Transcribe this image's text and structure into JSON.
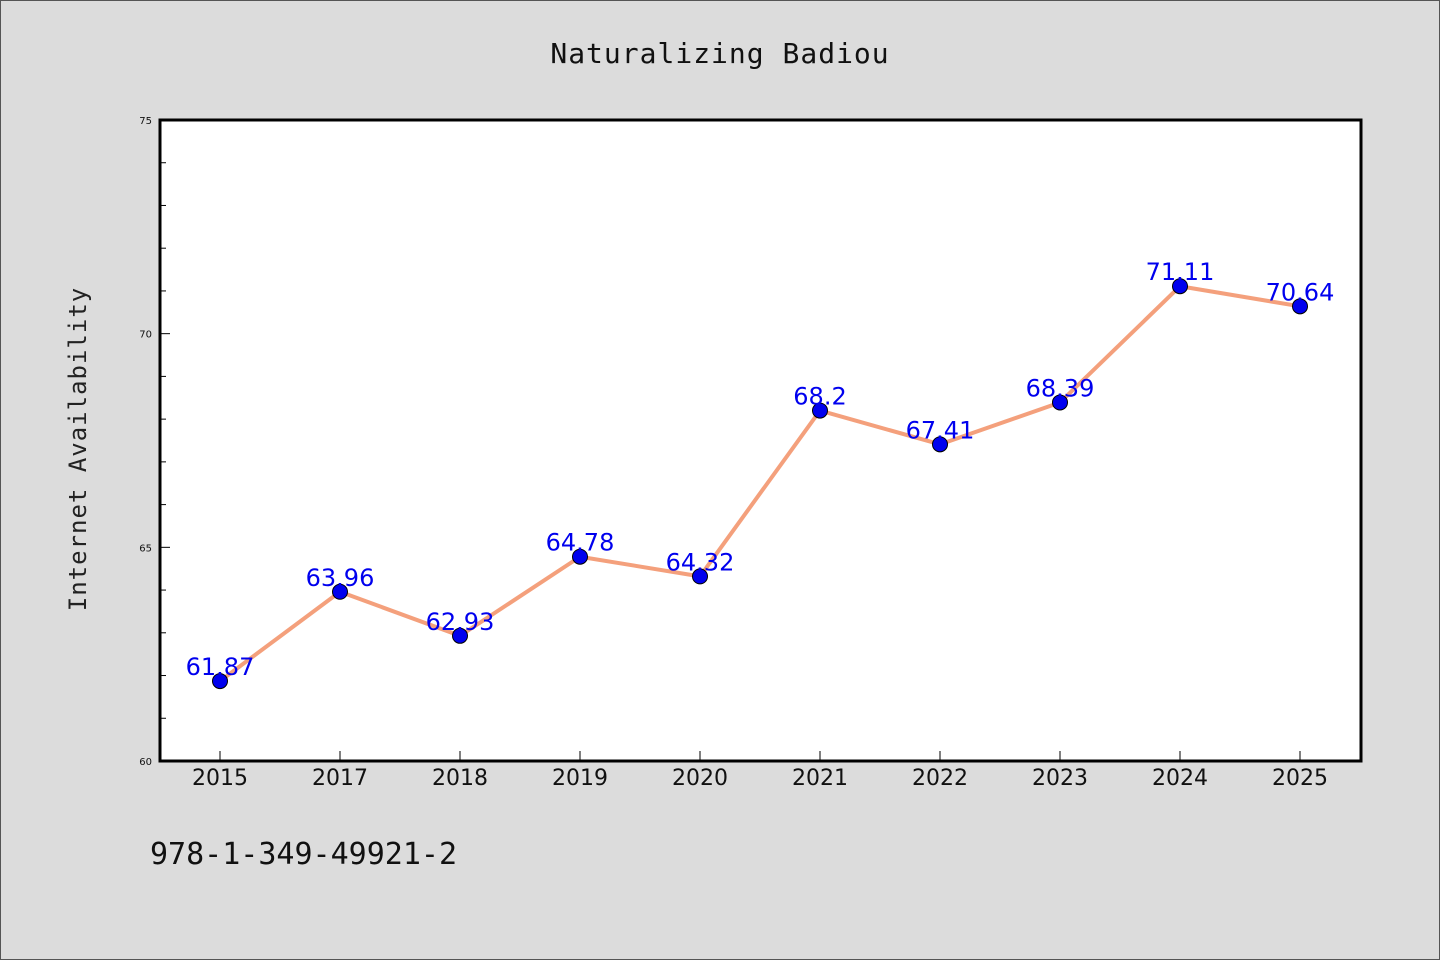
{
  "chart_data": {
    "type": "line",
    "title": "Naturalizing Badiou",
    "xlabel": "",
    "ylabel": "Internet Availability",
    "categories": [
      "2015",
      "2017",
      "2018",
      "2019",
      "2020",
      "2021",
      "2022",
      "2023",
      "2024",
      "2025"
    ],
    "series": [
      {
        "values": [
          61.87,
          63.96,
          62.93,
          64.78,
          64.32,
          68.2,
          67.41,
          68.39,
          71.11,
          70.64
        ]
      }
    ],
    "data_labels": [
      "61.87",
      "63.96",
      "62.93",
      "64.78",
      "64.32",
      "68.2",
      "67.41",
      "68.39",
      "71.11",
      "70.64"
    ],
    "ylim": [
      60,
      75
    ],
    "y_ticks": [
      "60",
      "65",
      "70",
      "75"
    ],
    "grid": false,
    "legend": "none",
    "colors": {
      "line": "#f4a07c",
      "marker": "#0000ee",
      "label": "#0000ee",
      "plot_background": "#ffffff",
      "page_background": "#dcdcdc"
    }
  },
  "footer": {
    "isbn": "978-1-349-49921-2"
  }
}
